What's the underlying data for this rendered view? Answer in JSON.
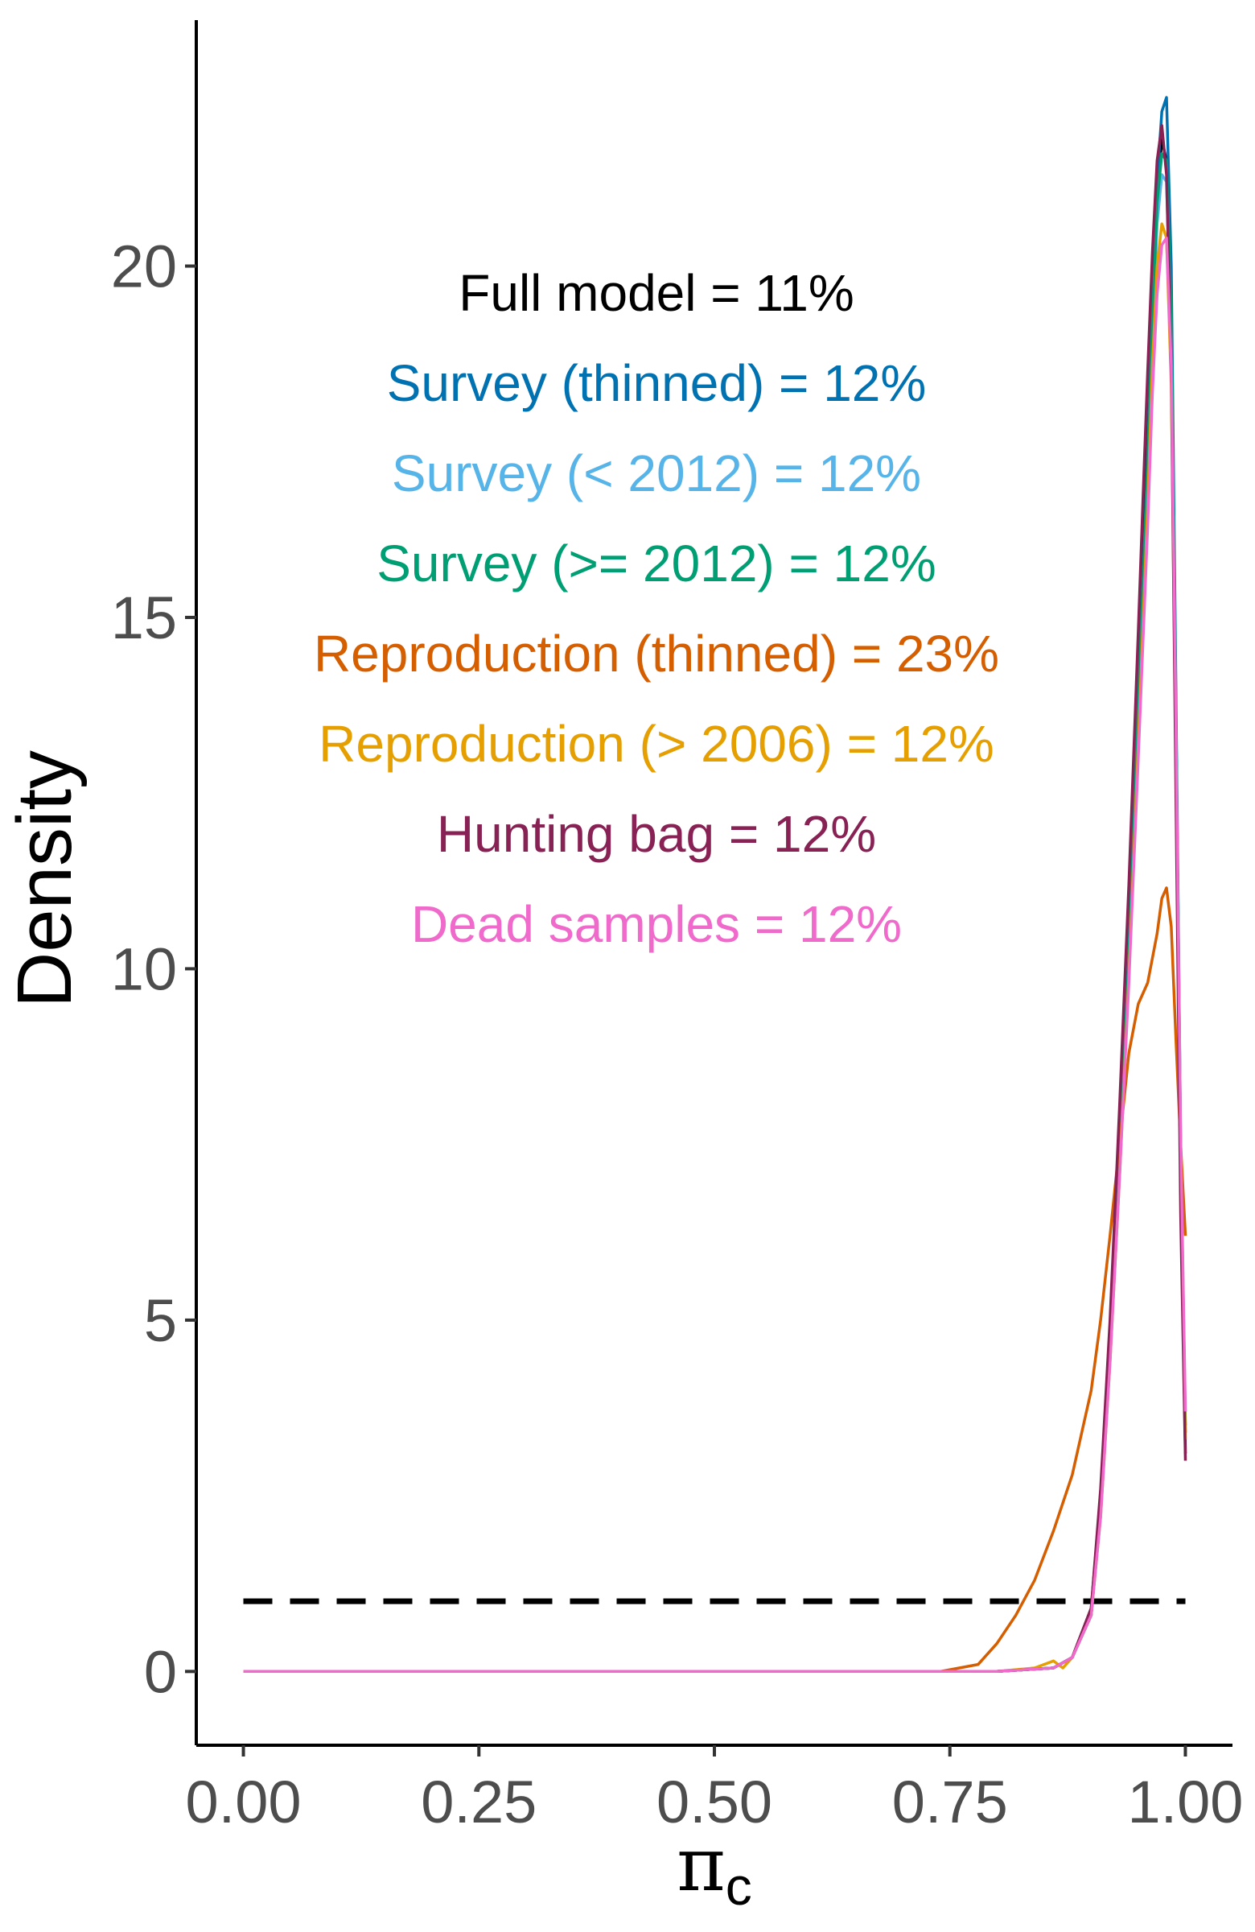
{
  "chart_data": {
    "type": "line",
    "xlabel": "πc",
    "xlabel_main": "π",
    "xlabel_sub": "c",
    "ylabel": "Density",
    "xlim": [
      -0.05,
      1.05
    ],
    "ylim": [
      -1.05,
      23.5
    ],
    "x_ticks": [
      0,
      0.25,
      0.5,
      0.75,
      1
    ],
    "x_tick_labels": [
      "0.00",
      "0.25",
      "0.50",
      "0.75",
      "1.00"
    ],
    "y_ticks": [
      0,
      5,
      10,
      15,
      20
    ],
    "y_tick_labels": [
      "0",
      "5",
      "10",
      "15",
      "20"
    ],
    "grid": false,
    "prior": {
      "style": "dashed",
      "color": "#000000",
      "x": [
        0,
        1
      ],
      "y": [
        1,
        1
      ]
    },
    "series": [
      {
        "label_text": "Full model = 11%",
        "color": "#000000",
        "x": [
          0,
          0.8,
          0.86,
          0.88,
          0.9,
          0.91,
          0.92,
          0.93,
          0.94,
          0.95,
          0.96,
          0.965,
          0.97,
          0.975,
          0.98,
          0.985,
          0.99,
          0.995,
          1.0
        ],
        "y": [
          0,
          0,
          0.05,
          0.2,
          0.9,
          2.5,
          4.8,
          7.5,
          10.5,
          14.0,
          17.5,
          19.5,
          21.0,
          21.8,
          21.5,
          19.0,
          13.0,
          7.0,
          3.1
        ]
      },
      {
        "label_text": "Survey (thinned) = 12%",
        "color": "#0072B2",
        "x": [
          0,
          0.8,
          0.86,
          0.88,
          0.9,
          0.91,
          0.92,
          0.93,
          0.94,
          0.95,
          0.96,
          0.965,
          0.97,
          0.975,
          0.98,
          0.985,
          0.99,
          0.995,
          1.0
        ],
        "y": [
          0,
          0,
          0.05,
          0.2,
          0.8,
          2.3,
          4.6,
          7.3,
          10.3,
          13.8,
          17.3,
          19.5,
          21.2,
          22.2,
          22.4,
          20.0,
          14.0,
          7.5,
          3.5
        ]
      },
      {
        "label_text": "Survey (< 2012) = 12%",
        "color": "#56B4E9",
        "x": [
          0,
          0.8,
          0.86,
          0.88,
          0.9,
          0.91,
          0.92,
          0.93,
          0.94,
          0.95,
          0.96,
          0.965,
          0.97,
          0.975,
          0.98,
          0.985,
          0.99,
          0.995,
          1.0
        ],
        "y": [
          0,
          0,
          0.05,
          0.2,
          0.8,
          2.3,
          4.6,
          7.2,
          10.2,
          13.6,
          17.0,
          19.0,
          20.6,
          21.3,
          21.2,
          19.0,
          13.5,
          7.3,
          3.4
        ]
      },
      {
        "label_text": "Survey (>= 2012) = 12%",
        "color": "#009E73",
        "x": [
          0,
          0.8,
          0.86,
          0.88,
          0.9,
          0.91,
          0.92,
          0.93,
          0.94,
          0.95,
          0.96,
          0.965,
          0.97,
          0.975,
          0.98,
          0.985,
          0.99,
          0.995,
          1.0
        ],
        "y": [
          0,
          0,
          0.05,
          0.2,
          0.8,
          2.3,
          4.6,
          7.2,
          10.2,
          13.7,
          17.2,
          19.2,
          20.9,
          21.6,
          21.5,
          19.3,
          13.7,
          7.4,
          3.4
        ]
      },
      {
        "label_text": "Reproduction (thinned) = 23%",
        "color": "#D55E00",
        "x": [
          0,
          0.74,
          0.76,
          0.78,
          0.8,
          0.82,
          0.84,
          0.86,
          0.88,
          0.9,
          0.91,
          0.92,
          0.93,
          0.94,
          0.95,
          0.96,
          0.97,
          0.975,
          0.98,
          0.985,
          0.99,
          0.995,
          1.0
        ],
        "y": [
          0,
          0,
          0.05,
          0.1,
          0.4,
          0.8,
          1.3,
          2.0,
          2.8,
          4.0,
          5.0,
          6.2,
          7.5,
          8.8,
          9.5,
          9.8,
          10.5,
          11.0,
          11.15,
          10.6,
          9.0,
          7.5,
          6.2
        ]
      },
      {
        "label_text": "Reproduction (> 2006) = 12%",
        "color": "#E69F00",
        "x": [
          0,
          0.8,
          0.84,
          0.86,
          0.87,
          0.88,
          0.9,
          0.91,
          0.92,
          0.93,
          0.94,
          0.95,
          0.96,
          0.965,
          0.97,
          0.975,
          0.98,
          0.985,
          0.99,
          0.995,
          1.0
        ],
        "y": [
          0,
          0,
          0.05,
          0.15,
          0.05,
          0.2,
          0.8,
          2.2,
          4.4,
          7.0,
          9.9,
          13.2,
          16.6,
          18.6,
          20.0,
          20.6,
          20.4,
          18.3,
          13.0,
          7.1,
          3.3
        ]
      },
      {
        "label_text": "Hunting bag = 12%",
        "color": "#882255",
        "x": [
          0,
          0.8,
          0.86,
          0.88,
          0.9,
          0.91,
          0.92,
          0.93,
          0.94,
          0.95,
          0.955,
          0.96,
          0.965,
          0.97,
          0.975,
          0.98,
          0.985,
          0.99,
          0.995,
          1.0
        ],
        "y": [
          0,
          0,
          0.05,
          0.2,
          0.9,
          2.6,
          5.0,
          8.0,
          11.2,
          14.8,
          16.7,
          18.5,
          20.2,
          21.5,
          22.0,
          21.3,
          18.5,
          12.5,
          6.5,
          3.0
        ]
      },
      {
        "label_text": "Dead samples = 12%",
        "color": "#F06ACC",
        "x": [
          0,
          0.8,
          0.86,
          0.88,
          0.9,
          0.91,
          0.92,
          0.93,
          0.94,
          0.95,
          0.96,
          0.965,
          0.97,
          0.975,
          0.98,
          0.985,
          0.99,
          0.995,
          1.0
        ],
        "y": [
          0,
          0,
          0.05,
          0.2,
          0.8,
          2.2,
          4.4,
          7.0,
          9.8,
          13.0,
          16.3,
          18.2,
          19.6,
          20.3,
          20.4,
          18.6,
          13.5,
          7.6,
          3.7
        ]
      }
    ]
  }
}
